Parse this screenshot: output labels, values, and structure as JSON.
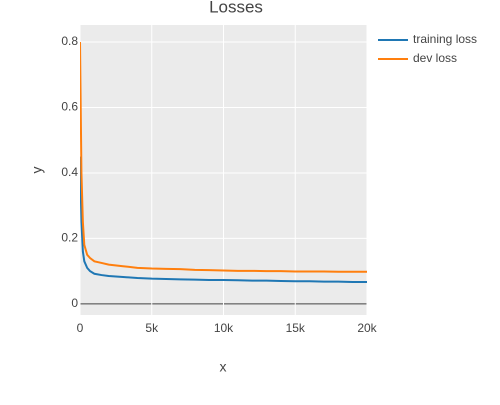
{
  "chart_data": {
    "type": "line",
    "title": "Losses",
    "x_label": "x",
    "y_label": "y",
    "x": [
      0,
      100,
      200,
      300,
      500,
      700,
      1000,
      1500,
      2000,
      3000,
      4000,
      5000,
      6000,
      7000,
      8000,
      9000,
      10000,
      11000,
      12000,
      13000,
      14000,
      15000,
      16000,
      17000,
      18000,
      19000,
      20000
    ],
    "series": [
      {
        "name": "training loss",
        "color": "#1f77b4",
        "values": [
          0.45,
          0.25,
          0.16,
          0.13,
          0.11,
          0.1,
          0.092,
          0.088,
          0.085,
          0.082,
          0.079,
          0.077,
          0.076,
          0.075,
          0.074,
          0.073,
          0.073,
          0.072,
          0.071,
          0.071,
          0.07,
          0.069,
          0.069,
          0.068,
          0.068,
          0.067,
          0.067
        ]
      },
      {
        "name": "dev loss",
        "color": "#ff7f0e",
        "values": [
          0.8,
          0.4,
          0.25,
          0.18,
          0.15,
          0.14,
          0.13,
          0.125,
          0.12,
          0.115,
          0.11,
          0.108,
          0.107,
          0.106,
          0.104,
          0.103,
          0.102,
          0.101,
          0.101,
          0.1,
          0.1,
          0.099,
          0.099,
          0.099,
          0.098,
          0.098,
          0.098
        ]
      }
    ],
    "xlim": [
      0,
      20000
    ],
    "xticks": [
      0,
      {
        "value": 5000,
        "label": "5k"
      },
      {
        "value": 10000,
        "label": "10k"
      },
      {
        "value": 15000,
        "label": "15k"
      },
      {
        "value": 20000,
        "label": "20k"
      }
    ],
    "ylim": [
      -0.034,
      0.852
    ],
    "yticks": [
      0,
      0.2,
      0.4,
      0.6,
      0.8
    ],
    "grid": true,
    "legend": "right"
  }
}
